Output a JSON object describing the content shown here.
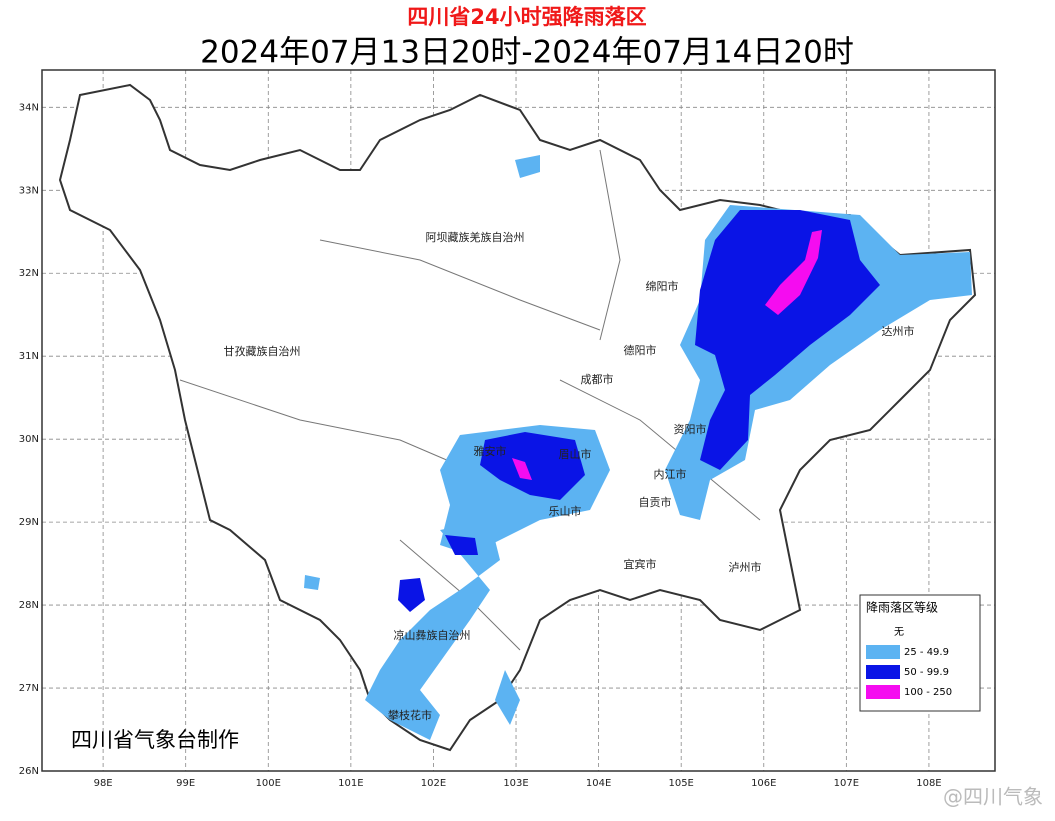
{
  "title": "四川省24小时强降雨落区",
  "subtitle": "2024年07月13日20时-2024年07月14日20时",
  "map": {
    "lon_range": [
      97.26,
      108.8
    ],
    "lat_range": [
      26,
      34.45
    ],
    "lat_ticks": [
      {
        "value": 34,
        "label": "34N"
      },
      {
        "value": 33,
        "label": "33N"
      },
      {
        "value": 32,
        "label": "32N"
      },
      {
        "value": 31,
        "label": "31N"
      },
      {
        "value": 30,
        "label": "30N"
      },
      {
        "value": 29,
        "label": "29N"
      },
      {
        "value": 28,
        "label": "28N"
      },
      {
        "value": 27,
        "label": "27N"
      },
      {
        "value": 26,
        "label": "26N"
      }
    ],
    "lon_ticks": [
      {
        "value": 98,
        "label": "98E"
      },
      {
        "value": 99,
        "label": "99E"
      },
      {
        "value": 100,
        "label": "100E"
      },
      {
        "value": 101,
        "label": "101E"
      },
      {
        "value": 102,
        "label": "102E"
      },
      {
        "value": 103,
        "label": "103E"
      },
      {
        "value": 104,
        "label": "104E"
      },
      {
        "value": 105,
        "label": "105E"
      },
      {
        "value": 106,
        "label": "106E"
      },
      {
        "value": 107,
        "label": "107E"
      },
      {
        "value": 108,
        "label": "108E"
      }
    ],
    "places": [
      "阿坝藏族羌族自治州",
      "甘孜藏族自治州",
      "绵阳市",
      "德阳市",
      "成都市",
      "达州市",
      "资阳市",
      "内江市",
      "自贡市",
      "宜宾市",
      "泸州市",
      "乐山市",
      "雅安市",
      "眉山市",
      "凉山彝族自治州",
      "攀枝花市"
    ]
  },
  "legend": {
    "title": "降雨落区等级",
    "items": [
      {
        "label": "无"
      },
      {
        "label": "25 - 49.9",
        "color": "#5cb3f2"
      },
      {
        "label": "50 - 99.9",
        "color": "#0a14e6"
      },
      {
        "label": "100 - 250",
        "color": "#f50cf0"
      }
    ]
  },
  "credit": "四川省气象台制作",
  "watermark": "@四川气象"
}
